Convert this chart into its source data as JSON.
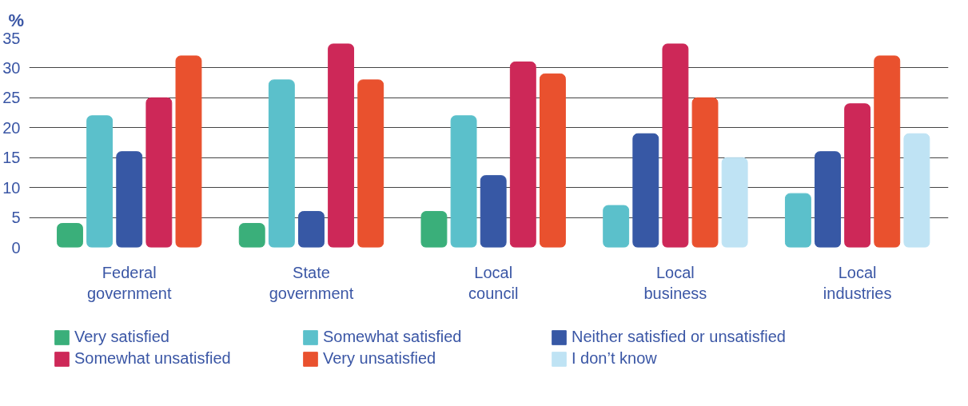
{
  "chart_data": {
    "type": "bar",
    "ylabel": "%",
    "categories": [
      "Federal government",
      "State government",
      "Local council",
      "Local business",
      "Local industries"
    ],
    "series": [
      {
        "name": "Very satisfied",
        "color": "#3aaf7a",
        "values": [
          4,
          4,
          6,
          null,
          null
        ]
      },
      {
        "name": "Somewhat satisfied",
        "color": "#5bc0cb",
        "values": [
          22,
          28,
          22,
          7,
          9
        ]
      },
      {
        "name": "Neither satisfied or unsatisfied",
        "color": "#3758a5",
        "values": [
          16,
          6,
          12,
          19,
          16
        ]
      },
      {
        "name": "Somewhat unsatisfied",
        "color": "#cd2858",
        "values": [
          25,
          34,
          31,
          34,
          24
        ]
      },
      {
        "name": "Very unsatisfied",
        "color": "#e9512e",
        "values": [
          32,
          28,
          29,
          25,
          32
        ]
      },
      {
        "name": "I don’t know",
        "color": "#bfe3f4",
        "values": [
          null,
          null,
          null,
          15,
          19
        ]
      }
    ],
    "ylim": [
      0,
      35
    ],
    "yticks": [
      0,
      5,
      10,
      15,
      20,
      25,
      30,
      35
    ],
    "grid": "y",
    "legend": "bottom"
  }
}
